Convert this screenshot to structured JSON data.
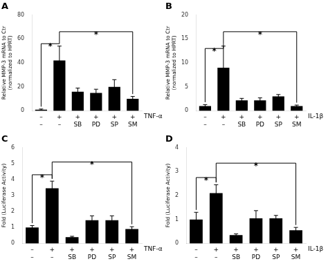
{
  "chart_data": [
    {
      "type": "bar",
      "title": "A",
      "y_label": "Relative MMP-3 mRNA to Ctr\n(normalized to HPRT)",
      "categories": [
        [
          "–",
          "–"
        ],
        [
          "+",
          "–"
        ],
        [
          "+",
          "SB"
        ],
        [
          "+",
          "PD"
        ],
        [
          "+",
          "SP"
        ],
        [
          "+",
          "SM"
        ]
      ],
      "values": [
        1,
        42,
        16,
        15,
        20,
        10
      ],
      "errors": [
        0.5,
        12,
        3,
        3,
        6,
        2
      ],
      "color": "#000000",
      "ylim": [
        0,
        80
      ],
      "yticks": [
        0,
        20,
        40,
        60,
        80
      ],
      "grid": false,
      "annotations": [
        {
          "text": "TNF-α"
        }
      ],
      "brackets": [
        {
          "from": 0,
          "to": 1,
          "y": 56,
          "text": "*"
        },
        {
          "from": 1,
          "to": 5,
          "y": 66,
          "text": "*"
        }
      ]
    },
    {
      "type": "bar",
      "title": "B",
      "y_label": "Relative MMP-3 mRNA to Ctr\n(normalized to HPRT)",
      "categories": [
        [
          "–",
          "–"
        ],
        [
          "+",
          "–"
        ],
        [
          "+",
          "SB"
        ],
        [
          "+",
          "PD"
        ],
        [
          "+",
          "SP"
        ],
        [
          "+",
          "SM"
        ]
      ],
      "values": [
        1,
        9,
        2.2,
        2.2,
        3,
        1
      ],
      "errors": [
        0.3,
        4.5,
        0.4,
        0.5,
        0.4,
        0.2
      ],
      "color": "#000000",
      "ylim": [
        0,
        20
      ],
      "yticks": [
        0,
        5,
        10,
        15,
        20
      ],
      "grid": false,
      "annotations": [
        {
          "text": "IL-1β"
        }
      ],
      "brackets": [
        {
          "from": 0,
          "to": 1,
          "y": 13,
          "text": "*"
        },
        {
          "from": 1,
          "to": 5,
          "y": 16.5,
          "text": "*"
        }
      ]
    },
    {
      "type": "bar",
      "title": "C",
      "y_label": "Fold (Luciferase Activity)",
      "categories": [
        [
          "–",
          "–"
        ],
        [
          "+",
          "–"
        ],
        [
          "+",
          "SB"
        ],
        [
          "+",
          "PD"
        ],
        [
          "+",
          "SP"
        ],
        [
          "+",
          "SM"
        ]
      ],
      "values": [
        1.0,
        3.45,
        0.4,
        1.45,
        1.45,
        0.9
      ],
      "errors": [
        0.12,
        0.45,
        0.05,
        0.28,
        0.28,
        0.15
      ],
      "color": "#000000",
      "ylim": [
        0,
        6
      ],
      "yticks": [
        0,
        1,
        2,
        3,
        4,
        5,
        6
      ],
      "grid": false,
      "annotations": [
        {
          "text": "TNF-α"
        }
      ],
      "brackets": [
        {
          "from": 0,
          "to": 1,
          "y": 4.3,
          "text": "*"
        },
        {
          "from": 1,
          "to": 5,
          "y": 5.1,
          "text": "*"
        }
      ]
    },
    {
      "type": "bar",
      "title": "D",
      "y_label": "Fold (Luciferase Activity)",
      "categories": [
        [
          "–",
          "–"
        ],
        [
          "+",
          "–"
        ],
        [
          "+",
          "SB"
        ],
        [
          "+",
          "PD"
        ],
        [
          "+",
          "SP"
        ],
        [
          "+",
          "SM"
        ]
      ],
      "values": [
        1.0,
        2.1,
        0.35,
        1.05,
        1.05,
        0.55
      ],
      "errors": [
        0.3,
        0.35,
        0.05,
        0.32,
        0.12,
        0.12
      ],
      "color": "#000000",
      "ylim": [
        0,
        4
      ],
      "yticks": [
        0,
        1,
        2,
        3,
        4
      ],
      "grid": false,
      "annotations": [
        {
          "text": "IL-1β"
        }
      ],
      "brackets": [
        {
          "from": 0,
          "to": 1,
          "y": 2.75,
          "text": "*"
        },
        {
          "from": 1,
          "to": 5,
          "y": 3.35,
          "text": "*"
        }
      ]
    }
  ]
}
